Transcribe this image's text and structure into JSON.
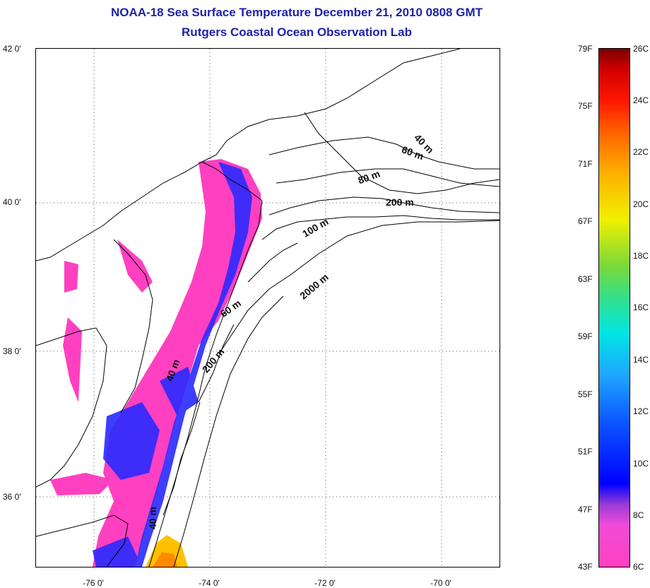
{
  "title_line1": "NOAA-18 Sea Surface Temperature December 21, 2010 0808 GMT",
  "title_line2": "Rutgers Coastal Ocean Observation Lab",
  "lat_labels": [
    "42 0'",
    "40 0'",
    "38 0'",
    "36 0'"
  ],
  "lon_labels": [
    "-76 0'",
    "-74 0'",
    "-72 0'",
    "-70 0'"
  ],
  "contour_labels": [
    "40 m",
    "60 m",
    "80 m",
    "100 m",
    "200 m",
    "2000 m",
    "60 m",
    "200 m",
    "40 m",
    "40 m"
  ],
  "colorbar": {
    "fahrenheit": [
      "79F",
      "75F",
      "71F",
      "67F",
      "63F",
      "59F",
      "55F",
      "51F",
      "47F",
      "43F"
    ],
    "celsius": [
      "26C",
      "24C",
      "22C",
      "20C",
      "18C",
      "16C",
      "14C",
      "12C",
      "10C",
      "8C",
      "6C"
    ]
  },
  "colors": {
    "title": "#1e22a8",
    "cold_sst": "#ff40c0",
    "cool_sst": "#2020ff",
    "warm_sst": "#ffc000",
    "coast": "#000000"
  }
}
